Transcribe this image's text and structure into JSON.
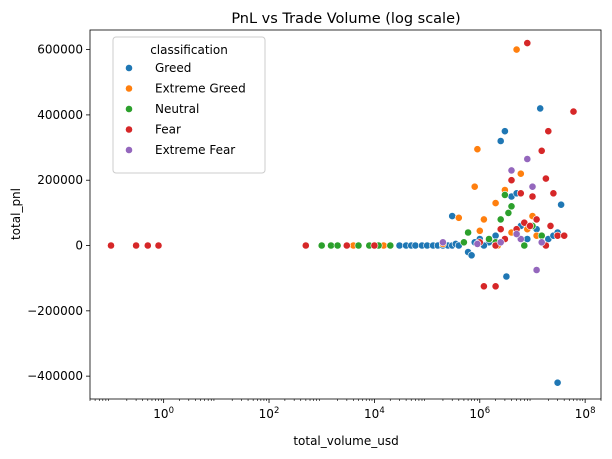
{
  "chart_data": {
    "type": "scatter",
    "title": "PnL vs Trade Volume (log scale)",
    "xlabel": "total_volume_usd",
    "ylabel": "total_pnl",
    "xscale": "log",
    "xlim": [
      0.04,
      200000000
    ],
    "ylim": [
      -470000,
      660000
    ],
    "xticks": [
      {
        "value": 1,
        "base": "10",
        "exp": "0"
      },
      {
        "value": 100,
        "base": "10",
        "exp": "2"
      },
      {
        "value": 10000,
        "base": "10",
        "exp": "4"
      },
      {
        "value": 1000000,
        "base": "10",
        "exp": "6"
      },
      {
        "value": 100000000,
        "base": "10",
        "exp": "8"
      }
    ],
    "yticks": [
      {
        "value": 600000,
        "label": "600000"
      },
      {
        "value": 400000,
        "label": "400000"
      },
      {
        "value": 200000,
        "label": "200000"
      },
      {
        "value": 0,
        "label": "0"
      },
      {
        "value": -200000,
        "label": "−200000"
      },
      {
        "value": -400000,
        "label": "−400000"
      }
    ],
    "grid": false,
    "legend": {
      "title": "classification",
      "placement": "top-left",
      "entries": [
        {
          "name": "Greed",
          "color": "#1f77b4"
        },
        {
          "name": "Extreme Greed",
          "color": "#ff7f0e"
        },
        {
          "name": "Neutral",
          "color": "#2ca02c"
        },
        {
          "name": "Fear",
          "color": "#d62728"
        },
        {
          "name": "Extreme Fear",
          "color": "#9467bd"
        }
      ]
    },
    "series": [
      {
        "name": "Greed",
        "color": "#1f77b4",
        "points": [
          [
            30000,
            0
          ],
          [
            40000,
            0
          ],
          [
            50000,
            0
          ],
          [
            60000,
            0
          ],
          [
            80000,
            0
          ],
          [
            100000,
            0
          ],
          [
            130000,
            0
          ],
          [
            160000,
            0
          ],
          [
            200000,
            0
          ],
          [
            250000,
            0
          ],
          [
            300000,
            0
          ],
          [
            350000,
            5000
          ],
          [
            400000,
            0
          ],
          [
            600000,
            -20000
          ],
          [
            800000,
            10000
          ],
          [
            300000,
            90000
          ],
          [
            1000000,
            20000
          ],
          [
            1500000,
            10000
          ],
          [
            2000000,
            30000
          ],
          [
            2500000,
            320000
          ],
          [
            3000000,
            350000
          ],
          [
            3200000,
            -95000
          ],
          [
            4000000,
            150000
          ],
          [
            5000000,
            160000
          ],
          [
            6000000,
            60000
          ],
          [
            8000000,
            20000
          ],
          [
            12000000,
            50000
          ],
          [
            14000000,
            420000
          ],
          [
            20000000,
            20000
          ],
          [
            25000000,
            30000
          ],
          [
            30000000,
            -420000
          ],
          [
            30000000,
            40000
          ],
          [
            35000000,
            125000
          ],
          [
            1200000,
            0
          ],
          [
            700000,
            -30000
          ]
        ]
      },
      {
        "name": "Extreme Greed",
        "color": "#ff7f0e",
        "points": [
          [
            4000,
            0
          ],
          [
            15000,
            0
          ],
          [
            200000,
            5000
          ],
          [
            400000,
            85000
          ],
          [
            800000,
            180000
          ],
          [
            900000,
            295000
          ],
          [
            1000000,
            45000
          ],
          [
            1200000,
            80000
          ],
          [
            2000000,
            130000
          ],
          [
            2200000,
            0
          ],
          [
            3000000,
            170000
          ],
          [
            4000000,
            40000
          ],
          [
            5000000,
            600000
          ],
          [
            6000000,
            220000
          ],
          [
            8000000,
            50000
          ],
          [
            10000000,
            90000
          ],
          [
            12000000,
            30000
          ]
        ]
      },
      {
        "name": "Neutral",
        "color": "#2ca02c",
        "points": [
          [
            1000,
            0
          ],
          [
            1500,
            0
          ],
          [
            2000,
            0
          ],
          [
            3000,
            0
          ],
          [
            5000,
            0
          ],
          [
            8000,
            0
          ],
          [
            12000,
            0
          ],
          [
            20000,
            0
          ],
          [
            600000,
            40000
          ],
          [
            1500000,
            20000
          ],
          [
            2000000,
            10000
          ],
          [
            2500000,
            80000
          ],
          [
            3000000,
            155000
          ],
          [
            3500000,
            100000
          ],
          [
            4000000,
            120000
          ],
          [
            5000000,
            40000
          ],
          [
            7000000,
            0
          ],
          [
            10000000,
            60000
          ],
          [
            15000000,
            30000
          ],
          [
            500000,
            10000
          ]
        ]
      },
      {
        "name": "Fear",
        "color": "#d62728",
        "points": [
          [
            0.1,
            0
          ],
          [
            0.3,
            0
          ],
          [
            0.5,
            0
          ],
          [
            0.8,
            0
          ],
          [
            500,
            0
          ],
          [
            3000,
            0
          ],
          [
            10000,
            0
          ],
          [
            1000000,
            10000
          ],
          [
            1200000,
            -125000
          ],
          [
            2000000,
            -125000
          ],
          [
            2000000,
            0
          ],
          [
            3000000,
            20000
          ],
          [
            4000000,
            200000
          ],
          [
            5000000,
            50000
          ],
          [
            6000000,
            160000
          ],
          [
            7000000,
            70000
          ],
          [
            8000000,
            620000
          ],
          [
            9000000,
            60000
          ],
          [
            10000000,
            150000
          ],
          [
            12000000,
            80000
          ],
          [
            15000000,
            290000
          ],
          [
            18000000,
            205000
          ],
          [
            20000000,
            350000
          ],
          [
            22000000,
            60000
          ],
          [
            25000000,
            160000
          ],
          [
            30000000,
            30000
          ],
          [
            40000000,
            30000
          ],
          [
            60000000,
            410000
          ],
          [
            18000000,
            0
          ],
          [
            2500000,
            50000
          ]
        ]
      },
      {
        "name": "Extreme Fear",
        "color": "#9467bd",
        "points": [
          [
            200000,
            10000
          ],
          [
            900000,
            5000
          ],
          [
            2500000,
            10000
          ],
          [
            4000000,
            230000
          ],
          [
            6000000,
            20000
          ],
          [
            8000000,
            265000
          ],
          [
            10000000,
            180000
          ],
          [
            12000000,
            -75000
          ],
          [
            15000000,
            10000
          ],
          [
            5000000,
            35000
          ]
        ]
      }
    ]
  }
}
